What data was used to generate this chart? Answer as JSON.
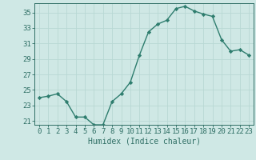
{
  "x": [
    0,
    1,
    2,
    3,
    4,
    5,
    6,
    7,
    8,
    9,
    10,
    11,
    12,
    13,
    14,
    15,
    16,
    17,
    18,
    19,
    20,
    21,
    22,
    23
  ],
  "y": [
    24.0,
    24.2,
    24.5,
    23.5,
    21.5,
    21.5,
    20.5,
    20.5,
    23.5,
    24.5,
    26.0,
    29.5,
    32.5,
    33.5,
    34.0,
    35.5,
    35.8,
    35.2,
    34.8,
    34.5,
    31.5,
    30.0,
    30.2,
    29.5
  ],
  "line_color": "#2e7d6e",
  "marker": "D",
  "marker_size": 2.2,
  "bg_color": "#cfe8e5",
  "grid_color": "#b8d8d4",
  "xlabel": "Humidex (Indice chaleur)",
  "ylabel": "",
  "xlim": [
    -0.5,
    23.5
  ],
  "ylim": [
    20.5,
    36.2
  ],
  "yticks": [
    21,
    23,
    25,
    27,
    29,
    31,
    33,
    35
  ],
  "xticks": [
    0,
    1,
    2,
    3,
    4,
    5,
    6,
    7,
    8,
    9,
    10,
    11,
    12,
    13,
    14,
    15,
    16,
    17,
    18,
    19,
    20,
    21,
    22,
    23
  ],
  "xtick_labels": [
    "0",
    "1",
    "2",
    "3",
    "4",
    "5",
    "6",
    "7",
    "8",
    "9",
    "10",
    "11",
    "12",
    "13",
    "14",
    "15",
    "16",
    "17",
    "18",
    "19",
    "20",
    "21",
    "22",
    "23"
  ],
  "xlabel_fontsize": 7,
  "tick_fontsize": 6.5,
  "line_width": 1.0,
  "text_color": "#2e6e64"
}
